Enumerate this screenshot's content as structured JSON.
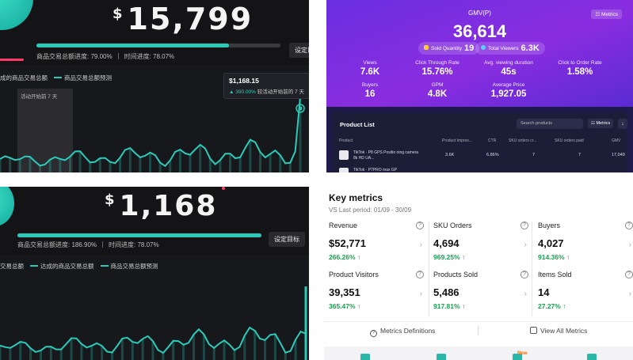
{
  "panel1": {
    "currency": "$",
    "gmv_value": "15,799",
    "progress_gmv_label": "商品交易总额进度: 79.00%",
    "progress_time_label": "时间进度: 78.07%",
    "progress_gmv_fraction": 0.79,
    "set_button": "设定目",
    "legend_solid": "成的商品交易总额",
    "legend_dashed": "商品交易总额预测",
    "shade_label": "活动开始前 7 天",
    "tooltip_value": "$1,168.15",
    "tooltip_change": "▲ 390.00%",
    "tooltip_desc": "较活动开始前的 7 天",
    "accent": "#2ccab8"
  },
  "panel2": {
    "gmv_label": "GMV(P)",
    "gmv_value": "36,614",
    "metrics_chip": "☷ Metrics",
    "sold_quantity_label": "Sold Quantity",
    "sold_quantity_value": "19",
    "total_viewers_label": "Total Viewers",
    "total_viewers_value": "6.3K",
    "kpis": [
      {
        "label": "Views",
        "value": "7.6K"
      },
      {
        "label": "Click Through Rate",
        "value": "15.76%"
      },
      {
        "label": "Avg. viewing duration",
        "value": "45s"
      },
      {
        "label": "Click to Order Rate",
        "value": "1.58%"
      },
      {
        "label": "Buyers",
        "value": "16"
      },
      {
        "label": "GPM",
        "value": "4.8K"
      },
      {
        "label": "Average Price",
        "value": "1,927.05"
      }
    ],
    "product_list_title": "Product List",
    "search_placeholder": "Search products",
    "metrics_button": "☷ Metrics",
    "download_icon": "↓",
    "columns": [
      "Product",
      "Product Impres...",
      "CTR",
      "SKU orders cr...",
      "SKU orders paid",
      "GMV"
    ],
    "rows": [
      {
        "name": "TikTok · P8 GPS Positio ning camera 8k HD UA...",
        "impressions": "3.6K",
        "ctr": "6.86%",
        "orders_created": "7",
        "orders_paid": "7",
        "gmv": "17,049"
      },
      {
        "name": "TikTok · P7PRO max GP",
        "impressions": "",
        "ctr": "",
        "orders_created": "",
        "orders_paid": "",
        "gmv": ""
      }
    ],
    "gradient_start": "#6a2fe0",
    "gradient_end": "#5a2bd4"
  },
  "panel3": {
    "currency": "$",
    "gmv_value": "1,168",
    "progress_gmv_label": "商品交易总额进度: 186.90%",
    "progress_time_label": "时间进度: 78.07%",
    "progress_gmv_fraction": 1.0,
    "set_button": "设定目标",
    "legend_prefix": "交易总额",
    "legend_solid": "达成的商品交易总额",
    "legend_dashed": "商品交易总额预测"
  },
  "panel4": {
    "title": "Key metrics",
    "subtitle": "VS Last period: 01/09 - 30/09",
    "metrics": [
      {
        "name": "Revenue",
        "value": "$52,771",
        "change": "266.26%"
      },
      {
        "name": "SKU Orders",
        "value": "4,694",
        "change": "969.25%"
      },
      {
        "name": "Buyers",
        "value": "4,027",
        "change": "914.36%"
      },
      {
        "name": "Product Visitors",
        "value": "39,351",
        "change": "365.47%"
      },
      {
        "name": "Products Sold",
        "value": "5,486",
        "change": "917.81%"
      },
      {
        "name": "Items Sold",
        "value": "14",
        "change": "27.27%"
      }
    ],
    "up_arrow": "↑",
    "help_glyph": "?",
    "chevron": "›",
    "metrics_definitions": "Metrics Definitions",
    "view_all_metrics": "View All Metrics",
    "new_badge": "New",
    "positive_color": "#1a9e52"
  }
}
